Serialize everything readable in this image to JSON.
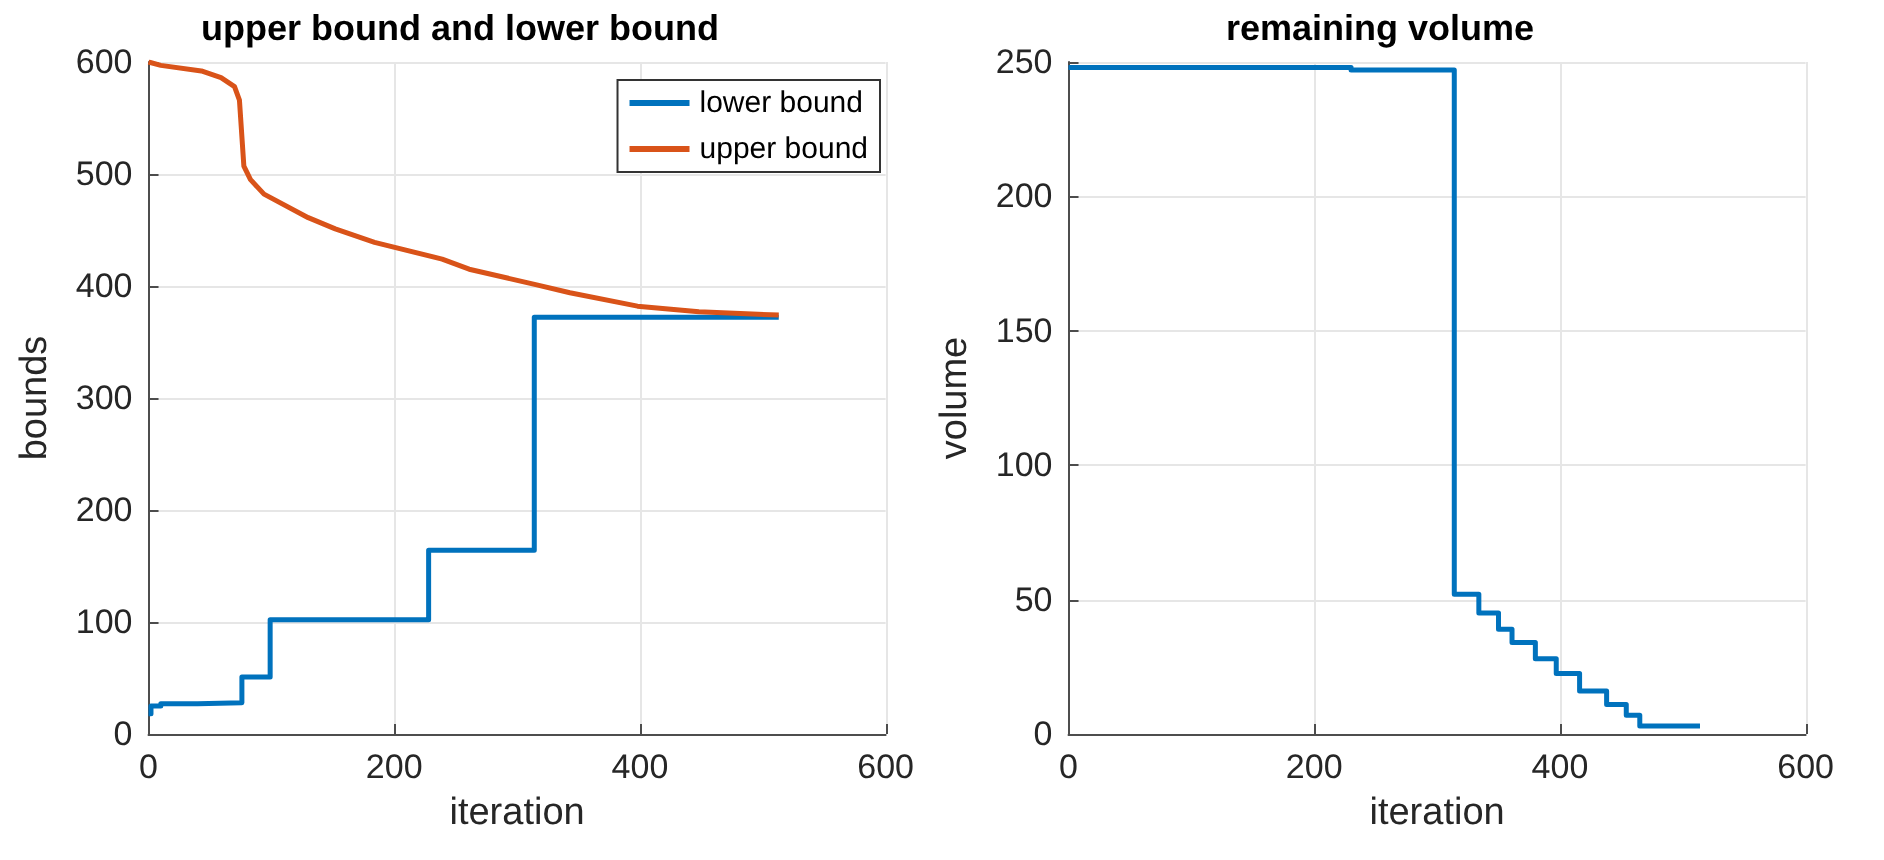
{
  "chart_data": [
    {
      "type": "step",
      "title": "upper bound and lower bound",
      "xlabel": "iteration",
      "ylabel": "bounds",
      "xlim": [
        0,
        600
      ],
      "xticks": [
        0,
        200,
        400,
        600
      ],
      "ylim": [
        0,
        600
      ],
      "yticks": [
        0,
        100,
        200,
        300,
        400,
        500,
        600
      ],
      "grid": true,
      "legend": "top right",
      "series": [
        {
          "name": "lower bound",
          "color": "#0072bd",
          "x": [
            0,
            2,
            10,
            40,
            76,
            99,
            228,
            314,
            460,
            513
          ],
          "values": [
            18,
            25,
            27,
            28,
            51,
            102,
            164,
            372,
            372,
            372
          ]
        },
        {
          "name": "upper bound",
          "color": "#d95319",
          "type": "line",
          "x": [
            0,
            10,
            43,
            59,
            70,
            74,
            77.6,
            83,
            94,
            130,
            152,
            184,
            239,
            261,
            316,
            343,
            398,
            448,
            513
          ],
          "values": [
            600,
            597,
            592,
            586,
            578,
            566,
            507,
            495,
            482,
            461,
            451,
            439,
            424,
            415,
            401,
            394,
            382,
            377,
            374
          ]
        }
      ]
    },
    {
      "type": "step",
      "title": "remaining volume",
      "xlabel": "iteration",
      "ylabel": "volume",
      "xlim": [
        0,
        600
      ],
      "xticks": [
        0,
        200,
        400,
        600
      ],
      "ylim": [
        0,
        250
      ],
      "yticks": [
        0,
        50,
        100,
        150,
        200,
        250
      ],
      "grid": true,
      "series": [
        {
          "color": "#0072bd",
          "x": [
            0,
            230,
            314,
            314,
            334,
            350,
            361,
            380,
            397,
            416,
            438,
            454,
            465,
            514
          ],
          "values": [
            248,
            247,
            246.5,
            52,
            45,
            39,
            34,
            28,
            22.5,
            16,
            11,
            7,
            3,
            2.5
          ]
        }
      ]
    }
  ]
}
